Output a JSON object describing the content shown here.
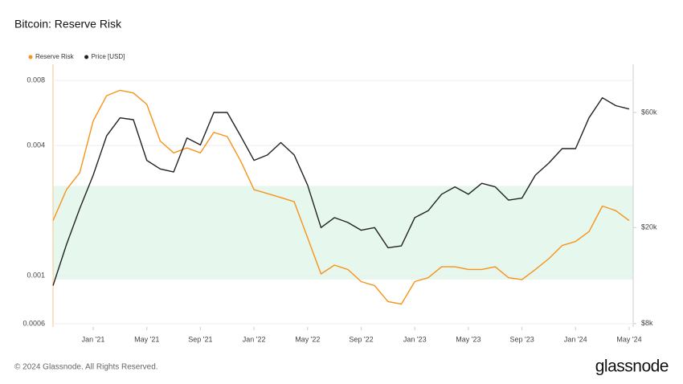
{
  "chart_data": {
    "type": "line",
    "title": "Bitcoin: Reserve Risk",
    "x": [
      "2020-10",
      "2020-11",
      "2020-12",
      "2021-01",
      "2021-02",
      "2021-03",
      "2021-04",
      "2021-05",
      "2021-06",
      "2021-07",
      "2021-08",
      "2021-09",
      "2021-10",
      "2021-11",
      "2021-12",
      "2022-01",
      "2022-02",
      "2022-03",
      "2022-04",
      "2022-05",
      "2022-06",
      "2022-07",
      "2022-08",
      "2022-09",
      "2022-10",
      "2022-11",
      "2022-12",
      "2023-01",
      "2023-02",
      "2023-03",
      "2023-04",
      "2023-05",
      "2023-06",
      "2023-07",
      "2023-08",
      "2023-09",
      "2023-10",
      "2023-11",
      "2023-12",
      "2024-01",
      "2024-02",
      "2024-03",
      "2024-04",
      "2024-05"
    ],
    "series": [
      {
        "name": "Reserve Risk",
        "color": "#f7931a",
        "axis": "y",
        "values": [
          0.0018,
          0.0025,
          0.003,
          0.0052,
          0.0068,
          0.0072,
          0.007,
          0.0062,
          0.0042,
          0.0037,
          0.0039,
          0.0037,
          0.0046,
          0.0044,
          0.0034,
          0.0025,
          0.0024,
          0.0023,
          0.0022,
          0.0015,
          0.00102,
          0.00112,
          0.00107,
          0.00094,
          0.0009,
          0.00076,
          0.00074,
          0.00094,
          0.00098,
          0.0011,
          0.0011,
          0.00107,
          0.00107,
          0.0011,
          0.00098,
          0.00096,
          0.00107,
          0.0012,
          0.00138,
          0.00144,
          0.0016,
          0.0021,
          0.002,
          0.0018
        ]
      },
      {
        "name": "Price [USD]",
        "color": "#222222",
        "axis": "y2",
        "values": [
          11500,
          17000,
          24000,
          33000,
          48000,
          57000,
          56000,
          38000,
          35000,
          34000,
          47000,
          44000,
          60000,
          60000,
          48000,
          38000,
          40000,
          45000,
          40000,
          30000,
          20000,
          22000,
          21000,
          19500,
          20000,
          16500,
          16800,
          22000,
          23500,
          27500,
          29500,
          27500,
          30500,
          29500,
          26000,
          26500,
          33000,
          37000,
          42500,
          42500,
          57000,
          69000,
          64000,
          62000
        ]
      }
    ],
    "band": [
      0.00096,
      0.0026
    ],
    "band_color": "#e6f7ee",
    "log_scale": true,
    "xlim": [
      "2020-10",
      "2024-05"
    ],
    "xticks": [
      {
        "value": "2021-01",
        "label": "Jan '21"
      },
      {
        "value": "2021-05",
        "label": "May '21"
      },
      {
        "value": "2021-09",
        "label": "Sep '21"
      },
      {
        "value": "2022-01",
        "label": "Jan '22"
      },
      {
        "value": "2022-05",
        "label": "May '22"
      },
      {
        "value": "2022-09",
        "label": "Sep '22"
      },
      {
        "value": "2023-01",
        "label": "Jan '23"
      },
      {
        "value": "2023-05",
        "label": "May '23"
      },
      {
        "value": "2023-09",
        "label": "Sep '23"
      },
      {
        "value": "2024-01",
        "label": "Jan '24"
      },
      {
        "value": "2024-05",
        "label": "May '24"
      }
    ],
    "ylim": [
      0.00058,
      0.0095
    ],
    "yticks": [
      0.0006,
      0.001,
      0.004,
      0.008
    ],
    "y2lim": [
      7750,
      95000
    ],
    "y2ticks": [
      {
        "value": 8000,
        "label": "$8k"
      },
      {
        "value": 20000,
        "label": "$20k"
      },
      {
        "value": 60000,
        "label": "$60k"
      }
    ],
    "legend": "top-left",
    "grid": true
  },
  "footer": {
    "copyright": "© 2024 Glassnode. All Rights Reserved.",
    "logo": "glassnode"
  }
}
